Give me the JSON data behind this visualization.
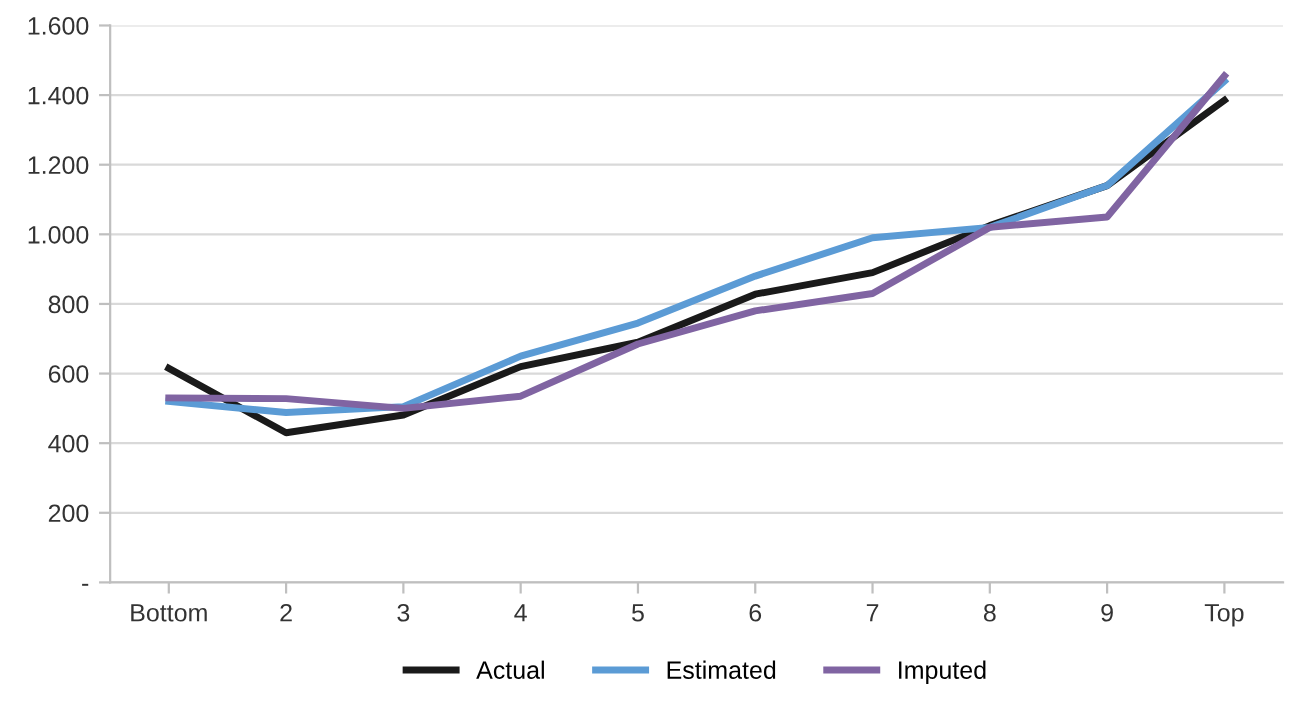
{
  "chart_data": {
    "type": "line",
    "categories": [
      "Bottom",
      "2",
      "3",
      "4",
      "5",
      "6",
      "7",
      "8",
      "9",
      "Top"
    ],
    "series": [
      {
        "name": "Actual",
        "color": "#1a1a1a",
        "values": [
          615,
          430,
          481,
          620,
          690,
          828,
          890,
          1025,
          1140,
          1385
        ]
      },
      {
        "name": "Estimated",
        "color": "#5b9bd5",
        "values": [
          520,
          488,
          505,
          650,
          745,
          880,
          990,
          1020,
          1140,
          1440
        ]
      },
      {
        "name": "Imputed",
        "color": "#8064a2",
        "values": [
          530,
          528,
          500,
          535,
          685,
          780,
          830,
          1020,
          1050,
          1455
        ]
      }
    ],
    "ylim": [
      0,
      1600
    ],
    "yticks": [
      {
        "value": 0,
        "label": "-"
      },
      {
        "value": 200,
        "label": "200"
      },
      {
        "value": 400,
        "label": "400"
      },
      {
        "value": 600,
        "label": "600"
      },
      {
        "value": 800,
        "label": "800"
      },
      {
        "value": 1000,
        "label": "1.000"
      },
      {
        "value": 1200,
        "label": "1.200"
      },
      {
        "value": 1400,
        "label": "1.400"
      },
      {
        "value": 1600,
        "label": "1.600"
      }
    ],
    "grid": "y",
    "legend": "bottom",
    "marker": "none",
    "line_style": "solid"
  }
}
